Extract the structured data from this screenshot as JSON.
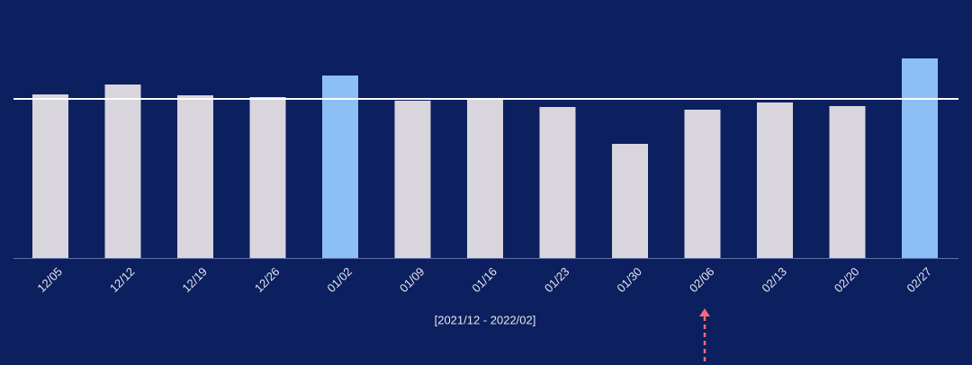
{
  "chart_data": {
    "type": "bar",
    "x_label": "[2021/12 - 2022/02]",
    "categories": [
      "12/05",
      "12/12",
      "12/19",
      "12/26",
      "01/02",
      "01/09",
      "01/16",
      "01/23",
      "01/30",
      "02/06",
      "02/13",
      "02/20",
      "02/27"
    ],
    "values": [
      182,
      193,
      181,
      179,
      203,
      175,
      176,
      168,
      127,
      165,
      173,
      169,
      222
    ],
    "colors": [
      "#d9d5dc",
      "#d9d5dc",
      "#d9d5dc",
      "#d9d5dc",
      "#8cc0f4",
      "#d9d5dc",
      "#d9d5dc",
      "#d9d5dc",
      "#d9d5dc",
      "#d9d5dc",
      "#d9d5dc",
      "#d9d5dc",
      "#8cc0f4"
    ],
    "ylim": [
      0,
      250
    ],
    "reference_line": 177
  }
}
